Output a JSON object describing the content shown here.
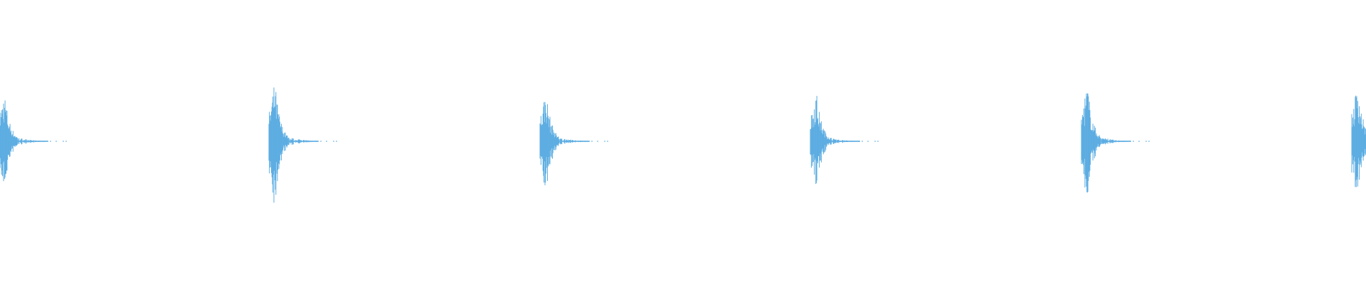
{
  "waveform": {
    "color": "#5DADE2",
    "background": "#FFFFFF",
    "burst_count": 6
  }
}
